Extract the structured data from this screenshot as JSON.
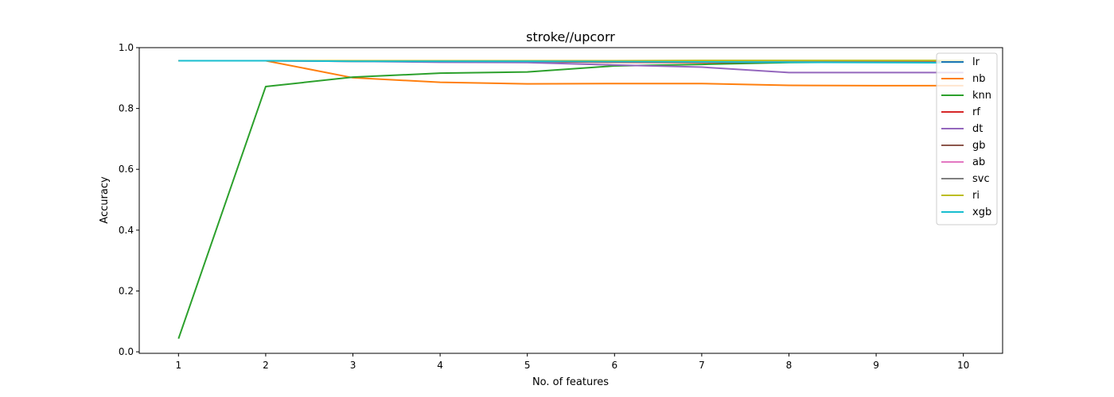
{
  "chart_data": {
    "type": "line",
    "title": "stroke//upcorr",
    "xlabel": "No. of features",
    "ylabel": "Accuracy",
    "x": [
      1,
      2,
      3,
      4,
      5,
      6,
      7,
      8,
      9,
      10
    ],
    "xticks": [
      "1",
      "2",
      "3",
      "4",
      "5",
      "6",
      "7",
      "8",
      "9",
      "10"
    ],
    "yticks": [
      "0.0",
      "0.2",
      "0.4",
      "0.6",
      "0.8",
      "1.0"
    ],
    "xlim": [
      0.55,
      10.45
    ],
    "ylim": [
      -0.005,
      1.0
    ],
    "grid": false,
    "legend_position": "top-right",
    "series": [
      {
        "name": "lr",
        "color": "#1f77b4",
        "values": [
          0.957,
          0.957,
          0.957,
          0.957,
          0.957,
          0.957,
          0.957,
          0.957,
          0.957,
          0.957
        ]
      },
      {
        "name": "nb",
        "color": "#ff7f0e",
        "values": [
          0.957,
          0.957,
          0.901,
          0.886,
          0.881,
          0.882,
          0.882,
          0.876,
          0.875,
          0.875
        ]
      },
      {
        "name": "knn",
        "color": "#2ca02c",
        "values": [
          0.043,
          0.872,
          0.903,
          0.916,
          0.92,
          0.94,
          0.945,
          0.951,
          0.953,
          0.953
        ]
      },
      {
        "name": "rf",
        "color": "#d62728",
        "values": [
          0.957,
          0.957,
          0.955,
          0.954,
          0.954,
          0.952,
          0.951,
          0.953,
          0.953,
          0.953
        ]
      },
      {
        "name": "dt",
        "color": "#9467bd",
        "values": [
          0.957,
          0.957,
          0.955,
          0.952,
          0.951,
          0.943,
          0.936,
          0.918,
          0.918,
          0.918
        ]
      },
      {
        "name": "gb",
        "color": "#8c564b",
        "values": [
          0.957,
          0.957,
          0.957,
          0.957,
          0.956,
          0.956,
          0.956,
          0.956,
          0.956,
          0.956
        ]
      },
      {
        "name": "ab",
        "color": "#e377c2",
        "values": [
          0.957,
          0.957,
          0.957,
          0.957,
          0.957,
          0.957,
          0.957,
          0.957,
          0.957,
          0.957
        ]
      },
      {
        "name": "svc",
        "color": "#7f7f7f",
        "values": [
          0.957,
          0.957,
          0.957,
          0.957,
          0.957,
          0.957,
          0.957,
          0.957,
          0.957,
          0.957
        ]
      },
      {
        "name": "ri",
        "color": "#bcbd22",
        "values": [
          0.957,
          0.957,
          0.957,
          0.957,
          0.957,
          0.957,
          0.958,
          0.958,
          0.958,
          0.958
        ]
      },
      {
        "name": "xgb",
        "color": "#17becf",
        "values": [
          0.957,
          0.957,
          0.955,
          0.955,
          0.955,
          0.954,
          0.953,
          0.952,
          0.951,
          0.95
        ]
      }
    ]
  }
}
